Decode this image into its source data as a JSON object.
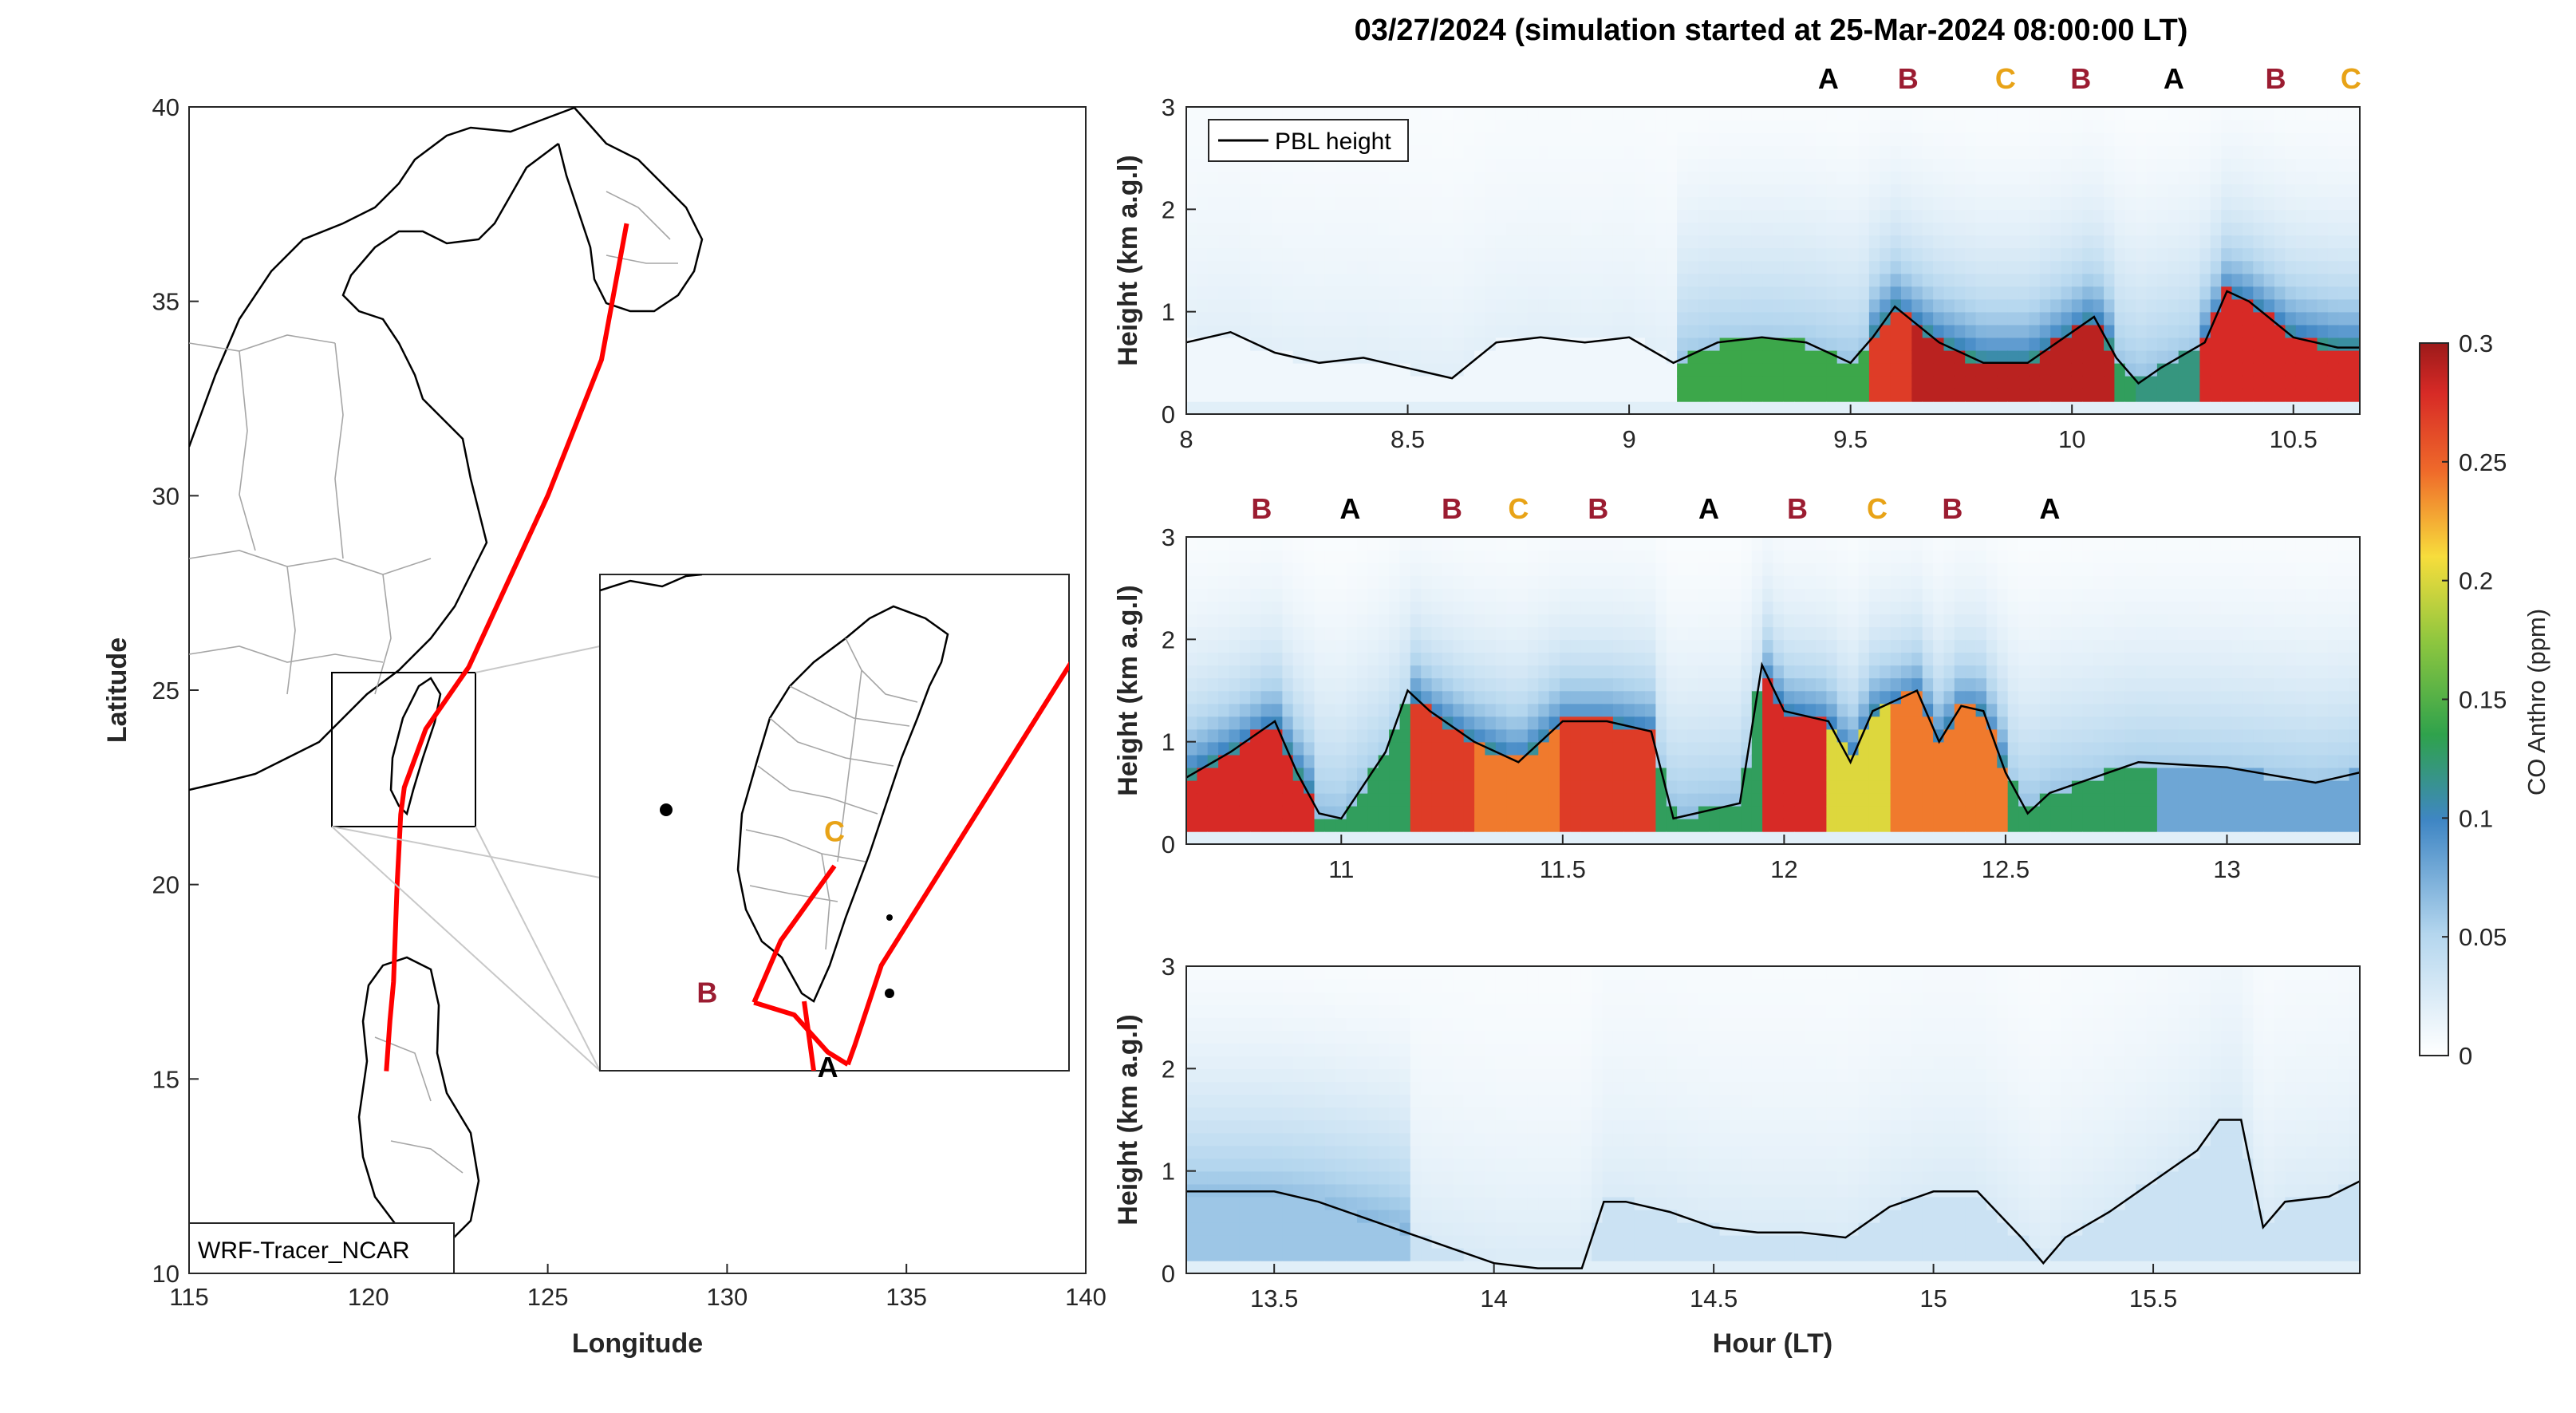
{
  "figure_title": "03/27/2024 (simulation started at 25-Mar-2024 08:00:00 LT)",
  "colors": {
    "A": "#000000",
    "B": "#9b1c31",
    "C": "#e8a317",
    "track": "#ff0000",
    "pbl": "#000000"
  },
  "chart_data": [
    {
      "type": "map",
      "xlabel": "Longitude",
      "ylabel": "Latitude",
      "xlim": [
        115,
        140
      ],
      "ylim": [
        10,
        40
      ],
      "x_ticks": [
        "115",
        "120",
        "125",
        "130",
        "135",
        "140"
      ],
      "y_ticks": [
        "10",
        "15",
        "20",
        "25",
        "30",
        "35",
        "40"
      ],
      "annotation": "WRF-Tracer_NCAR",
      "inset_region": {
        "lon": [
          119.0,
          122.5
        ],
        "lat": [
          21.5,
          25.5
        ]
      },
      "flight_track": [
        [
          127.2,
          37.0
        ],
        [
          126.5,
          33.5
        ],
        [
          125.0,
          30.0
        ],
        [
          124.0,
          28.0
        ],
        [
          122.8,
          25.6
        ],
        [
          121.6,
          24.0
        ],
        [
          121.0,
          22.5
        ],
        [
          120.9,
          21.8
        ],
        [
          120.8,
          20.0
        ],
        [
          120.7,
          17.5
        ],
        [
          120.6,
          16.5
        ],
        [
          120.5,
          15.2
        ]
      ],
      "inset_segments": {
        "C": [
          [
            120.75,
            23.15
          ],
          [
            120.35,
            22.55
          ],
          [
            120.15,
            22.05
          ]
        ],
        "B": [
          [
            120.15,
            22.05
          ],
          [
            120.45,
            21.95
          ],
          [
            120.7,
            21.65
          ],
          [
            120.85,
            21.55
          ]
        ],
        "A": [
          [
            120.85,
            21.55
          ],
          [
            120.9,
            21.7
          ],
          [
            121.1,
            22.35
          ],
          [
            122.55,
            24.85
          ]
        ]
      },
      "segment_labels": [
        {
          "text": "C",
          "lon": 120.75,
          "lat": 23.35
        },
        {
          "text": "B",
          "lon": 119.8,
          "lat": 22.05
        },
        {
          "text": "A",
          "lon": 120.7,
          "lat": 21.45
        }
      ]
    },
    {
      "type": "heatmap",
      "panel": "1",
      "ylabel": "Height (km a.g.l)",
      "xlim": [
        8,
        10.65
      ],
      "ylim": [
        0,
        3
      ],
      "x_ticks": [
        "8",
        "8.5",
        "9",
        "9.5",
        "10",
        "10.5"
      ],
      "y_ticks": [
        "0",
        "1",
        "2",
        "3"
      ],
      "legend": "PBL height",
      "segments": [
        {
          "text": "A",
          "x": 9.45
        },
        {
          "text": "B",
          "x": 9.63
        },
        {
          "text": "C",
          "x": 9.85
        },
        {
          "text": "B",
          "x": 10.02
        },
        {
          "text": "A",
          "x": 10.23
        },
        {
          "text": "B",
          "x": 10.46
        },
        {
          "text": "C",
          "x": 10.63
        }
      ],
      "pbl_x": [
        8.0,
        8.1,
        8.2,
        8.3,
        8.4,
        8.5,
        8.6,
        8.7,
        8.8,
        8.9,
        9.0,
        9.1,
        9.2,
        9.3,
        9.4,
        9.5,
        9.55,
        9.6,
        9.7,
        9.8,
        9.9,
        10.0,
        10.05,
        10.1,
        10.15,
        10.2,
        10.3,
        10.35,
        10.4,
        10.5,
        10.6,
        10.65
      ],
      "pbl_y": [
        0.7,
        0.8,
        0.6,
        0.5,
        0.55,
        0.45,
        0.35,
        0.7,
        0.75,
        0.7,
        0.75,
        0.5,
        0.7,
        0.75,
        0.7,
        0.5,
        0.75,
        1.05,
        0.7,
        0.5,
        0.5,
        0.8,
        0.95,
        0.55,
        0.3,
        0.45,
        0.7,
        1.2,
        1.1,
        0.75,
        0.65,
        0.65
      ]
    },
    {
      "type": "heatmap",
      "panel": "2",
      "ylabel": "Height (km a.g.l)",
      "xlim": [
        10.65,
        13.3
      ],
      "ylim": [
        0,
        3
      ],
      "x_ticks": [
        "11",
        "11.5",
        "12",
        "12.5",
        "13"
      ],
      "y_ticks": [
        "0",
        "1",
        "2",
        "3"
      ],
      "segments": [
        {
          "text": "B",
          "x": 10.82
        },
        {
          "text": "A",
          "x": 11.02
        },
        {
          "text": "B",
          "x": 11.25
        },
        {
          "text": "C",
          "x": 11.4
        },
        {
          "text": "B",
          "x": 11.58
        },
        {
          "text": "A",
          "x": 11.83
        },
        {
          "text": "B",
          "x": 12.03
        },
        {
          "text": "C",
          "x": 12.21
        },
        {
          "text": "B",
          "x": 12.38
        },
        {
          "text": "A",
          "x": 12.6
        }
      ],
      "pbl_x": [
        10.65,
        10.75,
        10.85,
        10.9,
        10.95,
        11.0,
        11.1,
        11.15,
        11.2,
        11.3,
        11.4,
        11.5,
        11.6,
        11.7,
        11.75,
        11.8,
        11.9,
        11.95,
        12.0,
        12.1,
        12.15,
        12.2,
        12.3,
        12.35,
        12.4,
        12.45,
        12.5,
        12.55,
        12.6,
        12.8,
        13.0,
        13.2,
        13.3
      ],
      "pbl_y": [
        0.65,
        0.9,
        1.2,
        0.7,
        0.3,
        0.25,
        0.9,
        1.5,
        1.3,
        1.0,
        0.8,
        1.2,
        1.2,
        1.1,
        0.25,
        0.3,
        0.4,
        1.75,
        1.3,
        1.2,
        0.8,
        1.3,
        1.5,
        1.0,
        1.35,
        1.3,
        0.7,
        0.3,
        0.5,
        0.8,
        0.75,
        0.6,
        0.7
      ]
    },
    {
      "type": "heatmap",
      "panel": "3",
      "ylabel": "Height (km a.g.l)",
      "xlabel": "Hour (LT)",
      "xlim": [
        13.3,
        15.97
      ],
      "ylim": [
        0,
        3
      ],
      "x_ticks": [
        "13.5",
        "14",
        "14.5",
        "15",
        "15.5"
      ],
      "y_ticks": [
        "0",
        "1",
        "2",
        "3"
      ],
      "pbl_x": [
        13.3,
        13.4,
        13.5,
        13.6,
        13.7,
        13.8,
        13.9,
        14.0,
        14.1,
        14.2,
        14.25,
        14.3,
        14.4,
        14.5,
        14.6,
        14.7,
        14.8,
        14.9,
        15.0,
        15.1,
        15.2,
        15.25,
        15.3,
        15.4,
        15.5,
        15.6,
        15.65,
        15.7,
        15.75,
        15.8,
        15.9,
        15.97
      ],
      "pbl_y": [
        0.8,
        0.8,
        0.8,
        0.7,
        0.55,
        0.4,
        0.25,
        0.1,
        0.05,
        0.05,
        0.7,
        0.7,
        0.6,
        0.45,
        0.4,
        0.4,
        0.35,
        0.65,
        0.8,
        0.8,
        0.35,
        0.1,
        0.35,
        0.6,
        0.9,
        1.2,
        1.5,
        1.5,
        0.45,
        0.7,
        0.75,
        0.9
      ]
    },
    {
      "type": "colorbar",
      "label": "CO Anthro (ppm)",
      "range": [
        0,
        0.3
      ],
      "ticks": [
        "0",
        "0.05",
        "0.1",
        "0.15",
        "0.2",
        "0.25",
        "0.3"
      ]
    }
  ]
}
